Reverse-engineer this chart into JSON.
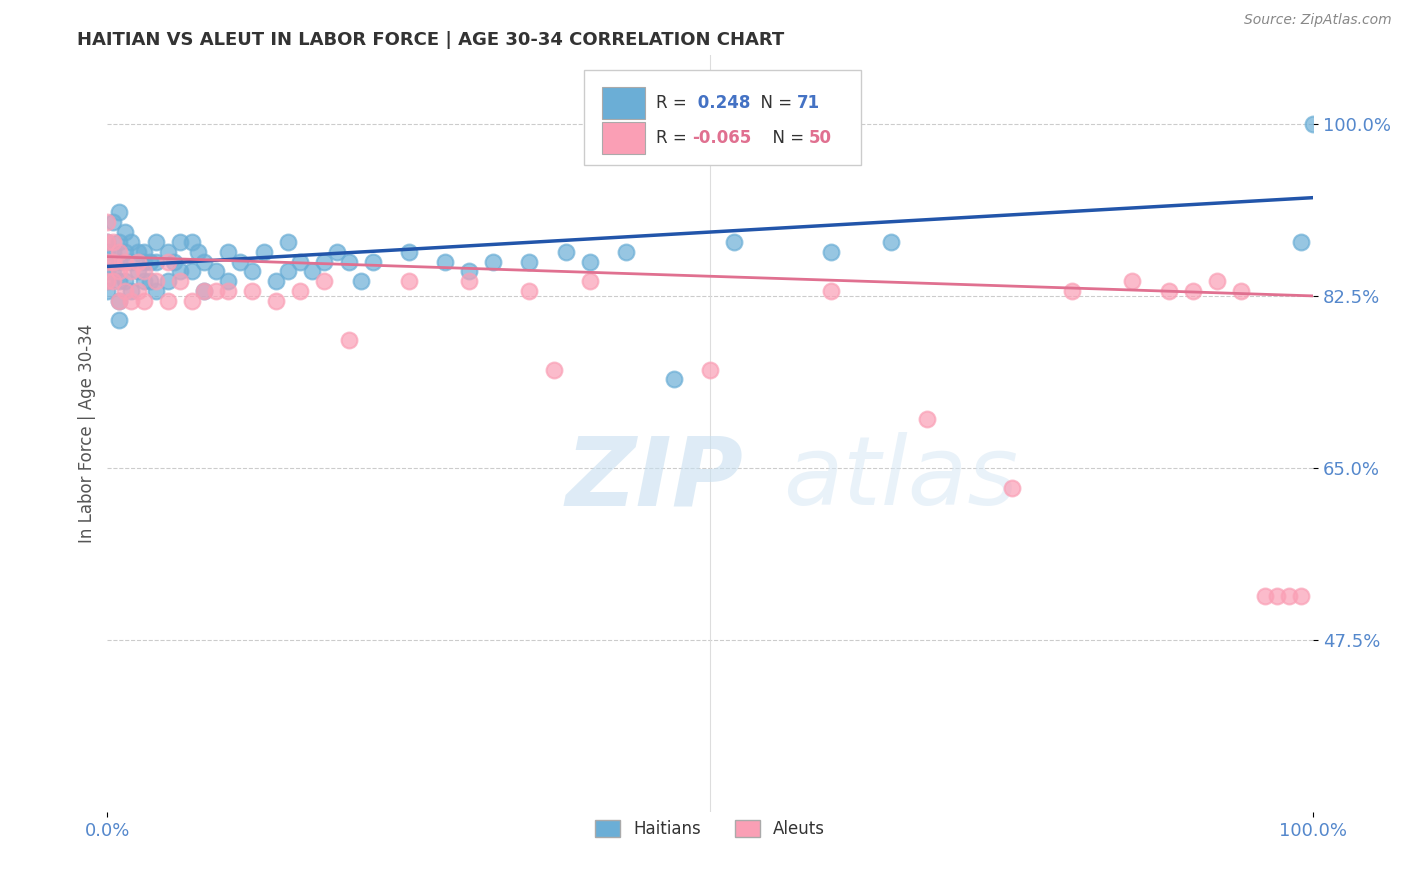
{
  "title": "HAITIAN VS ALEUT IN LABOR FORCE | AGE 30-34 CORRELATION CHART",
  "source_text": "Source: ZipAtlas.com",
  "ylabel": "In Labor Force | Age 30-34",
  "xlim": [
    0.0,
    1.0
  ],
  "ylim": [
    0.3,
    1.07
  ],
  "yticks": [
    0.475,
    0.65,
    0.825,
    1.0
  ],
  "ytick_labels": [
    "47.5%",
    "65.0%",
    "82.5%",
    "100.0%"
  ],
  "xticks": [
    0.0,
    1.0
  ],
  "xtick_labels": [
    "0.0%",
    "100.0%"
  ],
  "r_haitian": 0.248,
  "n_haitian": 71,
  "r_aleut": -0.065,
  "n_aleut": 50,
  "haitian_color": "#6baed6",
  "aleut_color": "#fa9fb5",
  "haitian_line_color": "#2255aa",
  "aleut_line_color": "#e07090",
  "watermark_zip": "ZIP",
  "watermark_atlas": "atlas",
  "background_color": "#ffffff",
  "grid_color": "#cccccc",
  "title_color": "#333333",
  "axis_label_color": "#555555",
  "haitian_x": [
    0.0,
    0.0,
    0.0,
    0.0,
    0.0,
    0.0,
    0.005,
    0.005,
    0.005,
    0.01,
    0.01,
    0.01,
    0.01,
    0.01,
    0.01,
    0.015,
    0.015,
    0.015,
    0.02,
    0.02,
    0.02,
    0.025,
    0.025,
    0.03,
    0.03,
    0.03,
    0.035,
    0.035,
    0.04,
    0.04,
    0.04,
    0.05,
    0.05,
    0.055,
    0.06,
    0.06,
    0.07,
    0.07,
    0.075,
    0.08,
    0.08,
    0.09,
    0.1,
    0.1,
    0.11,
    0.12,
    0.13,
    0.14,
    0.15,
    0.15,
    0.16,
    0.17,
    0.18,
    0.19,
    0.2,
    0.21,
    0.22,
    0.25,
    0.28,
    0.3,
    0.32,
    0.35,
    0.38,
    0.4,
    0.43,
    0.47,
    0.52,
    0.6,
    0.65,
    0.99,
    1.0
  ],
  "haitian_y": [
    0.88,
    0.87,
    0.86,
    0.85,
    0.84,
    0.83,
    0.9,
    0.87,
    0.85,
    0.91,
    0.88,
    0.86,
    0.84,
    0.82,
    0.8,
    0.89,
    0.87,
    0.84,
    0.88,
    0.86,
    0.83,
    0.87,
    0.85,
    0.87,
    0.86,
    0.84,
    0.86,
    0.84,
    0.88,
    0.86,
    0.83,
    0.87,
    0.84,
    0.86,
    0.88,
    0.85,
    0.88,
    0.85,
    0.87,
    0.86,
    0.83,
    0.85,
    0.87,
    0.84,
    0.86,
    0.85,
    0.87,
    0.84,
    0.88,
    0.85,
    0.86,
    0.85,
    0.86,
    0.87,
    0.86,
    0.84,
    0.86,
    0.87,
    0.86,
    0.85,
    0.86,
    0.86,
    0.87,
    0.86,
    0.87,
    0.74,
    0.88,
    0.87,
    0.88,
    0.88,
    1.0
  ],
  "aleut_x": [
    0.0,
    0.0,
    0.0,
    0.0,
    0.005,
    0.005,
    0.005,
    0.01,
    0.01,
    0.01,
    0.015,
    0.015,
    0.02,
    0.02,
    0.025,
    0.025,
    0.03,
    0.03,
    0.04,
    0.05,
    0.05,
    0.06,
    0.07,
    0.08,
    0.09,
    0.1,
    0.12,
    0.14,
    0.16,
    0.18,
    0.2,
    0.25,
    0.3,
    0.35,
    0.37,
    0.4,
    0.5,
    0.6,
    0.68,
    0.75,
    0.8,
    0.85,
    0.88,
    0.9,
    0.92,
    0.94,
    0.96,
    0.97,
    0.98,
    0.99
  ],
  "aleut_y": [
    0.9,
    0.88,
    0.86,
    0.84,
    0.88,
    0.86,
    0.84,
    0.87,
    0.85,
    0.82,
    0.86,
    0.83,
    0.85,
    0.82,
    0.86,
    0.83,
    0.85,
    0.82,
    0.84,
    0.86,
    0.82,
    0.84,
    0.82,
    0.83,
    0.83,
    0.83,
    0.83,
    0.82,
    0.83,
    0.84,
    0.78,
    0.84,
    0.84,
    0.83,
    0.75,
    0.84,
    0.75,
    0.83,
    0.7,
    0.63,
    0.83,
    0.84,
    0.83,
    0.83,
    0.84,
    0.83,
    0.52,
    0.52,
    0.52,
    0.52
  ]
}
